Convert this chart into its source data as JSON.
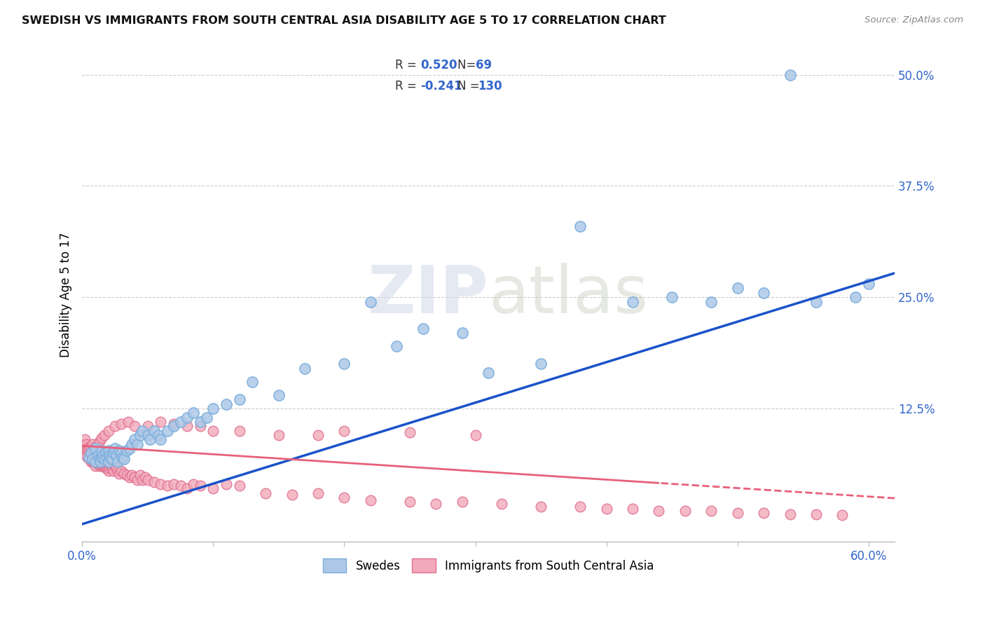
{
  "title": "SWEDISH VS IMMIGRANTS FROM SOUTH CENTRAL ASIA DISABILITY AGE 5 TO 17 CORRELATION CHART",
  "source": "Source: ZipAtlas.com",
  "ylabel": "Disability Age 5 to 17",
  "xlim": [
    0.0,
    0.62
  ],
  "ylim": [
    -0.025,
    0.53
  ],
  "grid_color": "#cccccc",
  "background_color": "#ffffff",
  "swedes_color": "#adc8e8",
  "swedes_edge_color": "#7aaddb",
  "immigrants_color": "#f2aaba",
  "immigrants_edge_color": "#e07090",
  "swedes_line_color": "#1a52c9",
  "immigrants_line_color": "#e8607a",
  "r_swedes": 0.52,
  "n_swedes": 69,
  "r_immigrants": -0.241,
  "n_immigrants": 130,
  "watermark_zip": "ZIP",
  "watermark_atlas": "atlas",
  "sw_intercept": -0.005,
  "sw_slope": 0.455,
  "im_intercept": 0.083,
  "im_slope": -0.095,
  "swedes_x": [
    0.005,
    0.007,
    0.008,
    0.01,
    0.01,
    0.012,
    0.013,
    0.014,
    0.015,
    0.015,
    0.016,
    0.017,
    0.018,
    0.019,
    0.02,
    0.02,
    0.021,
    0.022,
    0.023,
    0.024,
    0.025,
    0.026,
    0.027,
    0.028,
    0.03,
    0.031,
    0.032,
    0.034,
    0.036,
    0.038,
    0.04,
    0.042,
    0.044,
    0.046,
    0.05,
    0.052,
    0.055,
    0.058,
    0.06,
    0.065,
    0.07,
    0.075,
    0.08,
    0.085,
    0.09,
    0.095,
    0.1,
    0.11,
    0.12,
    0.13,
    0.15,
    0.17,
    0.2,
    0.22,
    0.24,
    0.26,
    0.29,
    0.31,
    0.35,
    0.38,
    0.42,
    0.45,
    0.48,
    0.5,
    0.52,
    0.54,
    0.56,
    0.59,
    0.6
  ],
  "swedes_y": [
    0.07,
    0.075,
    0.068,
    0.065,
    0.08,
    0.072,
    0.068,
    0.065,
    0.07,
    0.078,
    0.072,
    0.068,
    0.075,
    0.07,
    0.065,
    0.078,
    0.072,
    0.07,
    0.068,
    0.075,
    0.08,
    0.072,
    0.065,
    0.078,
    0.075,
    0.07,
    0.068,
    0.078,
    0.08,
    0.085,
    0.09,
    0.085,
    0.095,
    0.1,
    0.095,
    0.09,
    0.1,
    0.095,
    0.09,
    0.1,
    0.105,
    0.11,
    0.115,
    0.12,
    0.11,
    0.115,
    0.125,
    0.13,
    0.135,
    0.155,
    0.14,
    0.17,
    0.175,
    0.245,
    0.195,
    0.215,
    0.21,
    0.165,
    0.175,
    0.33,
    0.245,
    0.25,
    0.245,
    0.26,
    0.255,
    0.5,
    0.245,
    0.25,
    0.265
  ],
  "immigrants_x": [
    0.0,
    0.001,
    0.002,
    0.002,
    0.003,
    0.003,
    0.003,
    0.004,
    0.004,
    0.005,
    0.005,
    0.005,
    0.006,
    0.006,
    0.007,
    0.007,
    0.007,
    0.008,
    0.008,
    0.008,
    0.009,
    0.009,
    0.009,
    0.01,
    0.01,
    0.01,
    0.01,
    0.011,
    0.011,
    0.012,
    0.012,
    0.013,
    0.013,
    0.014,
    0.014,
    0.015,
    0.015,
    0.016,
    0.016,
    0.017,
    0.017,
    0.018,
    0.018,
    0.019,
    0.019,
    0.02,
    0.02,
    0.02,
    0.021,
    0.022,
    0.022,
    0.023,
    0.024,
    0.025,
    0.026,
    0.027,
    0.028,
    0.03,
    0.032,
    0.034,
    0.036,
    0.038,
    0.04,
    0.042,
    0.044,
    0.046,
    0.048,
    0.05,
    0.055,
    0.06,
    0.065,
    0.07,
    0.075,
    0.08,
    0.085,
    0.09,
    0.1,
    0.11,
    0.12,
    0.14,
    0.16,
    0.18,
    0.2,
    0.22,
    0.25,
    0.27,
    0.29,
    0.32,
    0.35,
    0.38,
    0.4,
    0.42,
    0.44,
    0.46,
    0.48,
    0.5,
    0.52,
    0.54,
    0.56,
    0.58,
    0.003,
    0.004,
    0.005,
    0.006,
    0.007,
    0.008,
    0.009,
    0.01,
    0.011,
    0.012,
    0.013,
    0.015,
    0.017,
    0.02,
    0.025,
    0.03,
    0.035,
    0.04,
    0.05,
    0.06,
    0.07,
    0.08,
    0.09,
    0.1,
    0.12,
    0.15,
    0.18,
    0.2,
    0.25,
    0.3
  ],
  "immigrants_y": [
    0.085,
    0.08,
    0.075,
    0.09,
    0.075,
    0.08,
    0.085,
    0.07,
    0.08,
    0.07,
    0.075,
    0.082,
    0.068,
    0.075,
    0.065,
    0.072,
    0.08,
    0.065,
    0.07,
    0.075,
    0.065,
    0.07,
    0.075,
    0.06,
    0.065,
    0.07,
    0.075,
    0.065,
    0.068,
    0.062,
    0.068,
    0.06,
    0.065,
    0.062,
    0.068,
    0.06,
    0.065,
    0.06,
    0.065,
    0.06,
    0.062,
    0.058,
    0.06,
    0.058,
    0.062,
    0.055,
    0.06,
    0.065,
    0.058,
    0.06,
    0.062,
    0.058,
    0.055,
    0.06,
    0.058,
    0.055,
    0.052,
    0.055,
    0.052,
    0.05,
    0.048,
    0.05,
    0.048,
    0.045,
    0.05,
    0.045,
    0.048,
    0.045,
    0.042,
    0.04,
    0.038,
    0.04,
    0.038,
    0.035,
    0.04,
    0.038,
    0.035,
    0.04,
    0.038,
    0.03,
    0.028,
    0.03,
    0.025,
    0.022,
    0.02,
    0.018,
    0.02,
    0.018,
    0.015,
    0.015,
    0.012,
    0.012,
    0.01,
    0.01,
    0.01,
    0.008,
    0.008,
    0.006,
    0.006,
    0.005,
    0.072,
    0.078,
    0.075,
    0.08,
    0.082,
    0.085,
    0.08,
    0.075,
    0.082,
    0.085,
    0.088,
    0.092,
    0.095,
    0.1,
    0.105,
    0.108,
    0.11,
    0.105,
    0.105,
    0.11,
    0.108,
    0.105,
    0.105,
    0.1,
    0.1,
    0.095,
    0.095,
    0.1,
    0.098,
    0.095
  ]
}
